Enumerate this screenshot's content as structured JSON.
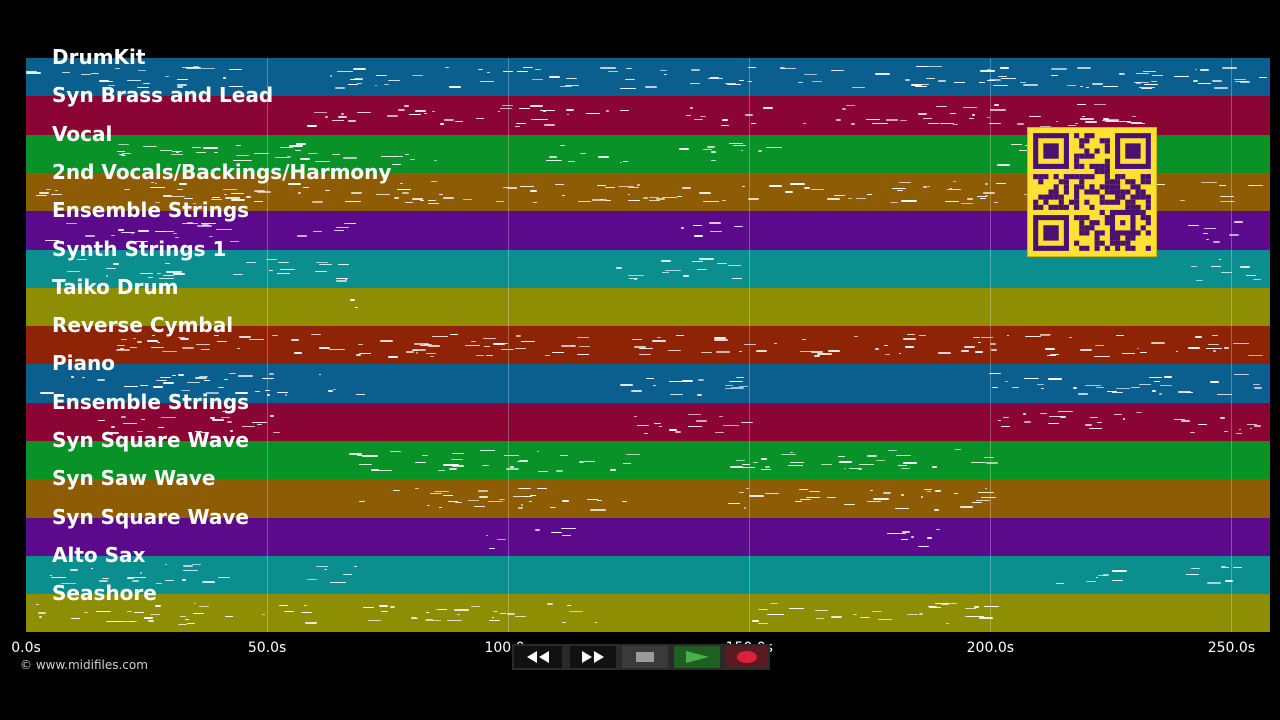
{
  "tracks": [
    {
      "label": "DrumKit",
      "color": "#0a5f8f"
    },
    {
      "label": "Syn Brass and Lead",
      "color": "#8a0533"
    },
    {
      "label": "Vocal",
      "color": "#089227"
    },
    {
      "label": "2nd Vocals/Backings/Harmony",
      "color": "#8e5c05"
    },
    {
      "label": "Ensemble Strings",
      "color": "#5c0a8c"
    },
    {
      "label": "Synth Strings 1",
      "color": "#0a8e8e"
    },
    {
      "label": "Taiko Drum",
      "color": "#8e8e05"
    },
    {
      "label": "Reverse Cymbal",
      "color": "#8e2305"
    },
    {
      "label": "Piano",
      "color": "#0a5f8f"
    },
    {
      "label": "Ensemble Strings",
      "color": "#8a0533"
    },
    {
      "label": "Syn Square Wave",
      "color": "#089227"
    },
    {
      "label": "Syn Saw Wave",
      "color": "#8e5c05"
    },
    {
      "label": "Syn Square Wave",
      "color": "#5c0a8c"
    },
    {
      "label": "Alto Sax",
      "color": "#0a8e8e"
    },
    {
      "label": "Seashore",
      "color": "#8e8e05"
    }
  ],
  "timeline": {
    "ticks": [
      "0.0s",
      "50.0s",
      "100.0s",
      "150.0s",
      "200.0s",
      "250.0s"
    ],
    "tick_seconds": [
      0,
      50,
      100,
      150,
      200,
      250
    ],
    "total_seconds": 258
  },
  "copyright": "© www.midifiles.com",
  "transport": {
    "rewind_icon": "rewind-icon",
    "fast_forward_icon": "fast-forward-icon",
    "stop_icon": "stop-icon",
    "play_icon": "play-icon",
    "record_icon": "record-icon",
    "play_color": "#4ab04a",
    "record_color": "#e0203a"
  },
  "qr": {
    "icon": "qr-code",
    "color": "#ffe033",
    "ink": "#4a1270"
  }
}
